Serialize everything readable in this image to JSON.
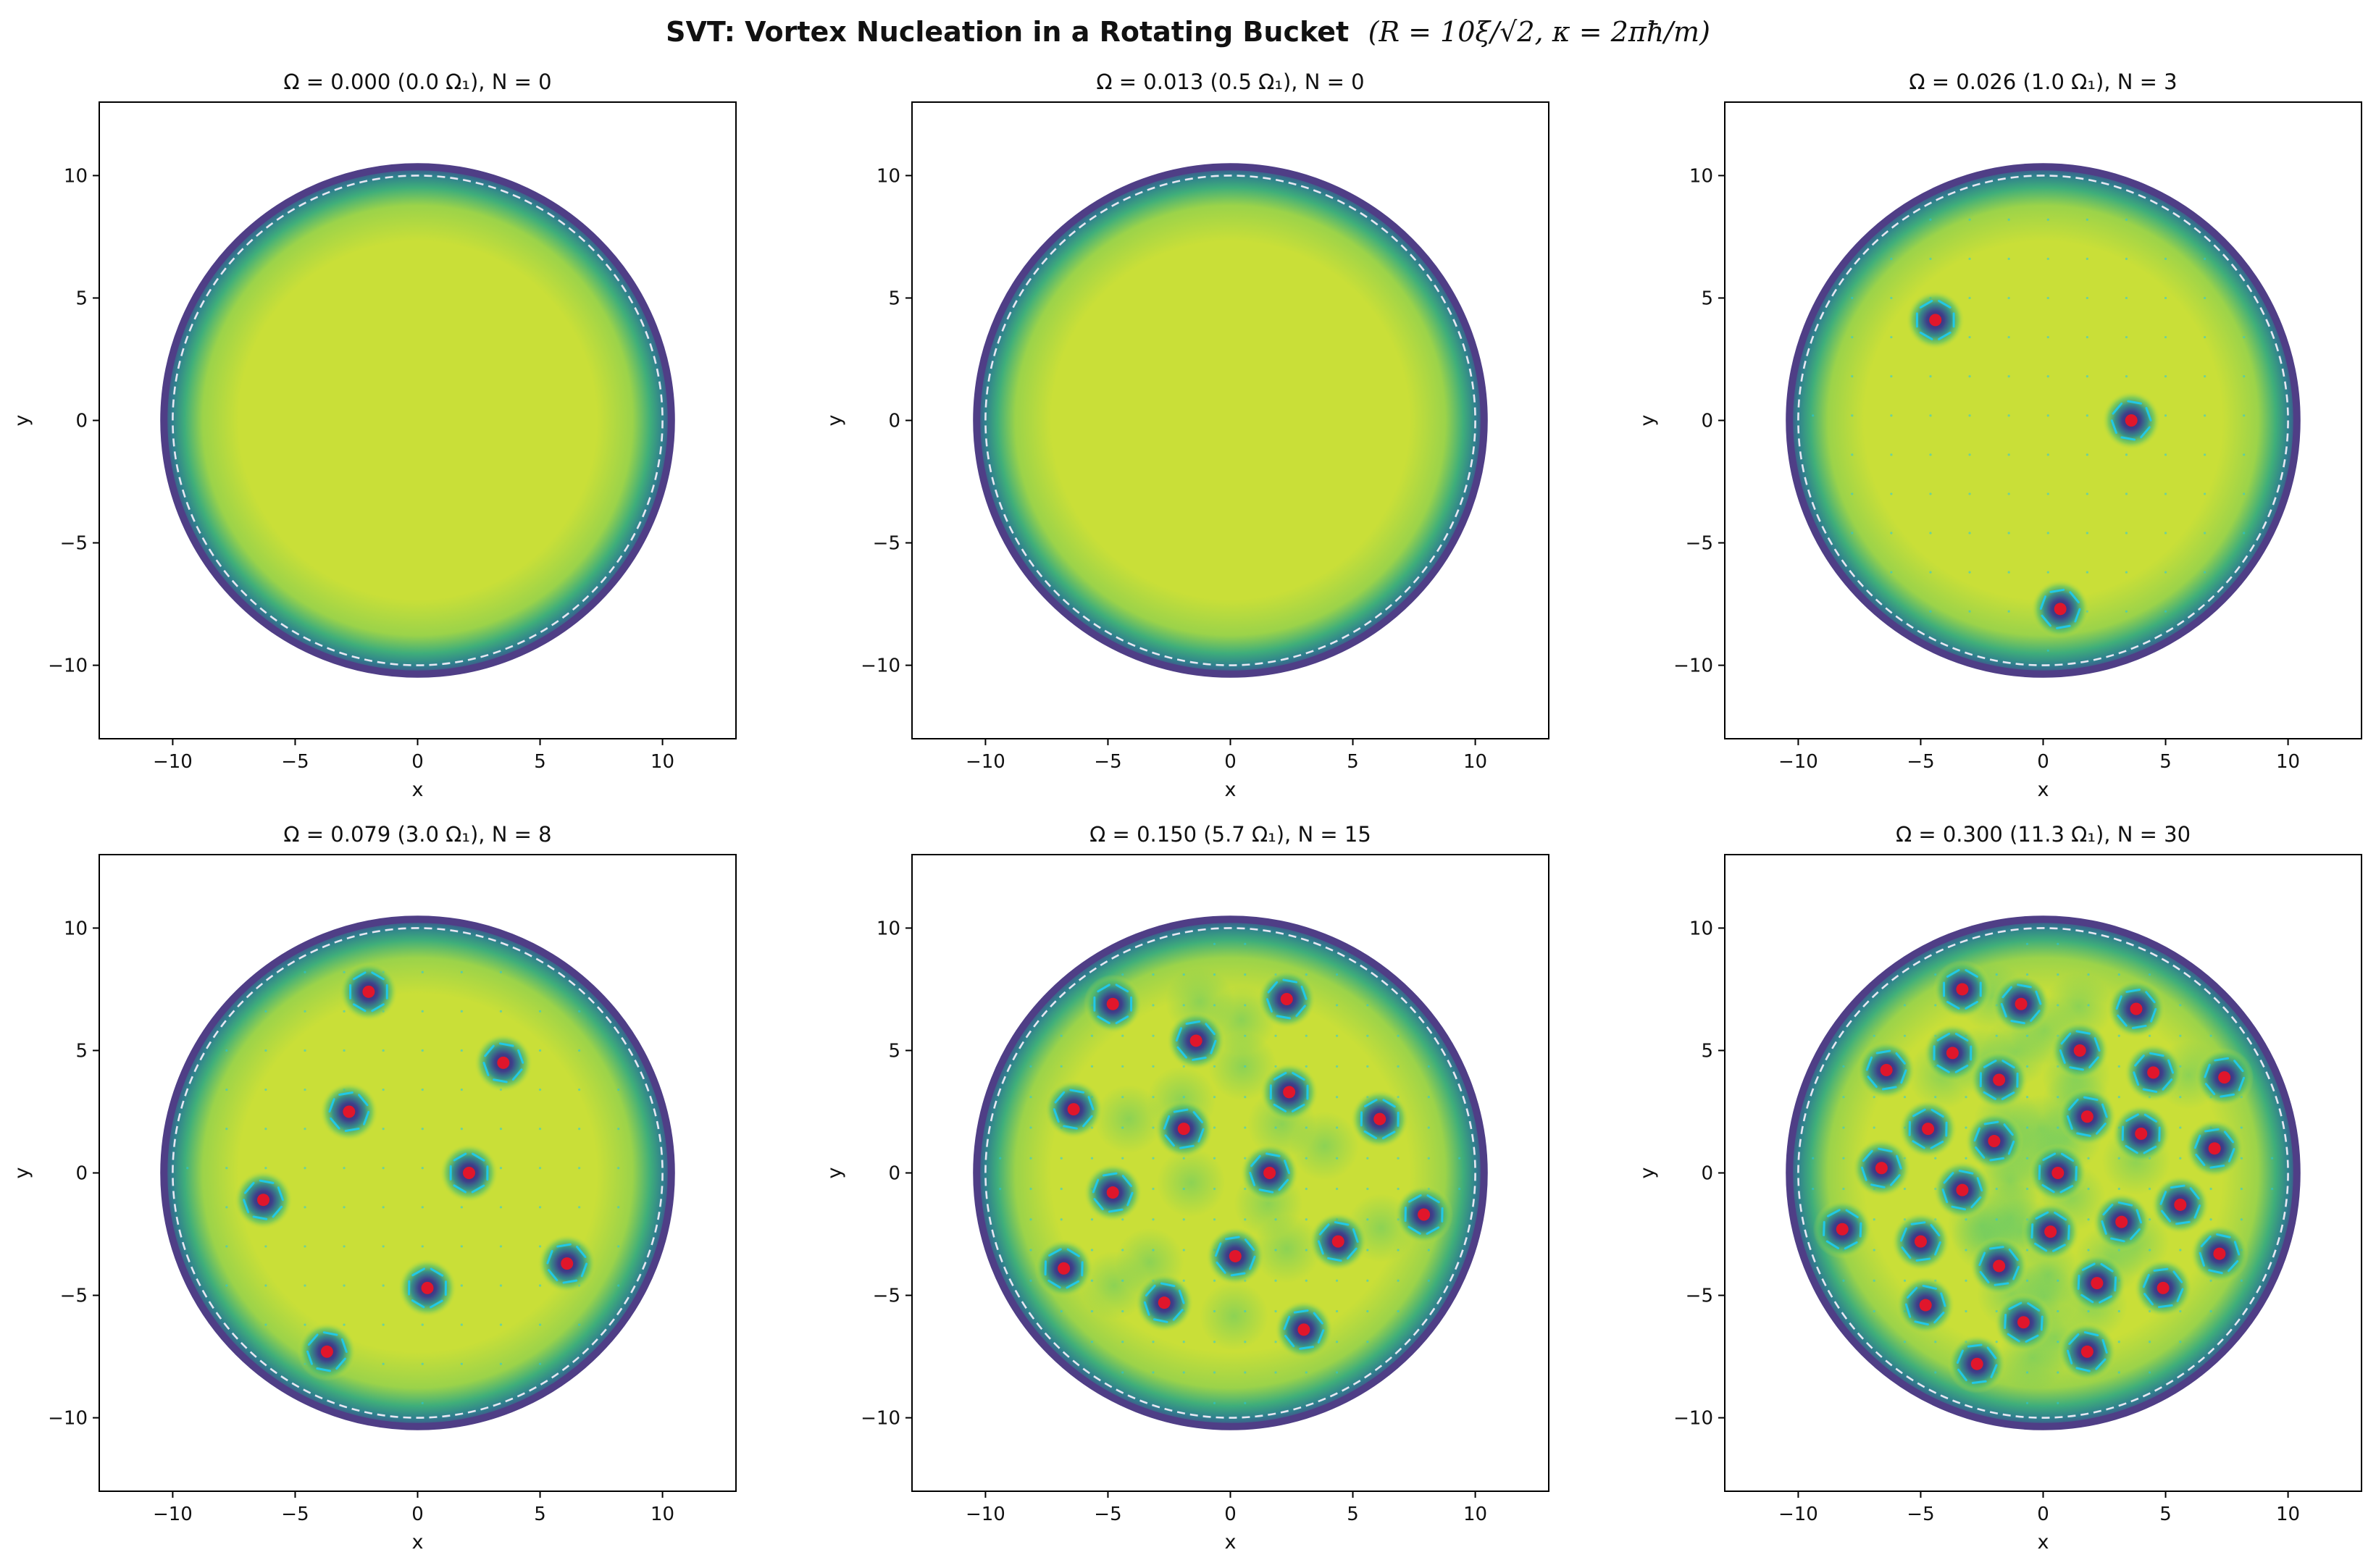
{
  "figure": {
    "title": "SVT: Vortex Nucleation in a Rotating Bucket",
    "title_math": "(R = 10ξ/√2,  κ = 2πħ/m)"
  },
  "colors": {
    "fluid": "#c9df38",
    "core_ring": "#46357a",
    "edge": "#4f3e86",
    "vortex_marker": "#e0162b",
    "arrows": "#22c8e6",
    "boundary_dashed": "#e6e6f2"
  },
  "chart_data": [
    {
      "type": "heatmap",
      "title": "Ω = 0.000  (0.0 Ω₁),  N = 0",
      "xlabel": "x",
      "ylabel": "y",
      "xlim": [
        -13,
        13
      ],
      "ylim": [
        -13,
        13
      ],
      "xticks": [
        -10,
        -5,
        0,
        5,
        10
      ],
      "yticks": [
        -10,
        -5,
        0,
        5,
        10
      ],
      "bucket_radius": 10,
      "vortices": []
    },
    {
      "type": "heatmap",
      "title": "Ω = 0.013  (0.5 Ω₁),  N = 0",
      "xlabel": "x",
      "ylabel": "y",
      "xlim": [
        -13,
        13
      ],
      "ylim": [
        -13,
        13
      ],
      "xticks": [
        -10,
        -5,
        0,
        5,
        10
      ],
      "yticks": [
        -10,
        -5,
        0,
        5,
        10
      ],
      "bucket_radius": 10,
      "vortices": []
    },
    {
      "type": "heatmap",
      "title": "Ω = 0.026  (1.0 Ω₁),  N = 3",
      "xlabel": "x",
      "ylabel": "y",
      "xlim": [
        -13,
        13
      ],
      "ylim": [
        -13,
        13
      ],
      "xticks": [
        -10,
        -5,
        0,
        5,
        10
      ],
      "yticks": [
        -10,
        -5,
        0,
        5,
        10
      ],
      "bucket_radius": 10,
      "vortices": [
        [
          -4.4,
          4.1
        ],
        [
          3.6,
          0.0
        ],
        [
          0.7,
          -7.7
        ]
      ]
    },
    {
      "type": "heatmap",
      "title": "Ω = 0.079  (3.0 Ω₁),  N = 8",
      "xlabel": "x",
      "ylabel": "y",
      "xlim": [
        -13,
        13
      ],
      "ylim": [
        -13,
        13
      ],
      "xticks": [
        -10,
        -5,
        0,
        5,
        10
      ],
      "yticks": [
        -10,
        -5,
        0,
        5,
        10
      ],
      "bucket_radius": 10,
      "vortices": [
        [
          -2.0,
          7.4
        ],
        [
          3.5,
          4.5
        ],
        [
          -2.8,
          2.5
        ],
        [
          2.1,
          0.0
        ],
        [
          -6.3,
          -1.1
        ],
        [
          6.1,
          -3.7
        ],
        [
          0.4,
          -4.7
        ],
        [
          -3.7,
          -7.3
        ]
      ]
    },
    {
      "type": "heatmap",
      "title": "Ω = 0.150  (5.7 Ω₁),  N = 15",
      "xlabel": "x",
      "ylabel": "y",
      "xlim": [
        -13,
        13
      ],
      "ylim": [
        -13,
        13
      ],
      "xticks": [
        -10,
        -5,
        0,
        5,
        10
      ],
      "yticks": [
        -10,
        -5,
        0,
        5,
        10
      ],
      "bucket_radius": 10,
      "vortices": [
        [
          -4.8,
          6.9
        ],
        [
          2.3,
          7.1
        ],
        [
          -1.4,
          5.4
        ],
        [
          2.4,
          3.3
        ],
        [
          -6.4,
          2.6
        ],
        [
          -1.9,
          1.8
        ],
        [
          6.1,
          2.2
        ],
        [
          1.6,
          0.0
        ],
        [
          -4.8,
          -0.8
        ],
        [
          7.9,
          -1.7
        ],
        [
          4.4,
          -2.8
        ],
        [
          0.2,
          -3.4
        ],
        [
          -6.8,
          -3.9
        ],
        [
          -2.7,
          -5.3
        ],
        [
          3.0,
          -6.4
        ]
      ]
    },
    {
      "type": "heatmap",
      "title": "Ω = 0.300  (11.3 Ω₁),  N = 30",
      "xlabel": "x",
      "ylabel": "y",
      "xlim": [
        -13,
        13
      ],
      "ylim": [
        -13,
        13
      ],
      "xticks": [
        -10,
        -5,
        0,
        5,
        10
      ],
      "yticks": [
        -10,
        -5,
        0,
        5,
        10
      ],
      "bucket_radius": 10,
      "vortices": [
        [
          -3.3,
          7.5
        ],
        [
          -0.9,
          6.9
        ],
        [
          3.8,
          6.7
        ],
        [
          -3.7,
          4.9
        ],
        [
          1.5,
          5.0
        ],
        [
          -6.4,
          4.2
        ],
        [
          -1.8,
          3.8
        ],
        [
          4.5,
          4.1
        ],
        [
          7.4,
          3.9
        ],
        [
          -4.7,
          1.8
        ],
        [
          1.8,
          2.3
        ],
        [
          -2.0,
          1.3
        ],
        [
          4.0,
          1.6
        ],
        [
          -6.6,
          0.2
        ],
        [
          7.0,
          1.0
        ],
        [
          0.6,
          0.0
        ],
        [
          -3.3,
          -0.7
        ],
        [
          5.6,
          -1.3
        ],
        [
          -8.2,
          -2.3
        ],
        [
          3.2,
          -2.0
        ],
        [
          -5.0,
          -2.8
        ],
        [
          0.3,
          -2.4
        ],
        [
          7.2,
          -3.3
        ],
        [
          -1.8,
          -3.8
        ],
        [
          2.2,
          -4.5
        ],
        [
          -4.8,
          -5.4
        ],
        [
          4.9,
          -4.7
        ],
        [
          -0.8,
          -6.1
        ],
        [
          1.8,
          -7.3
        ],
        [
          -2.7,
          -7.8
        ]
      ]
    }
  ]
}
